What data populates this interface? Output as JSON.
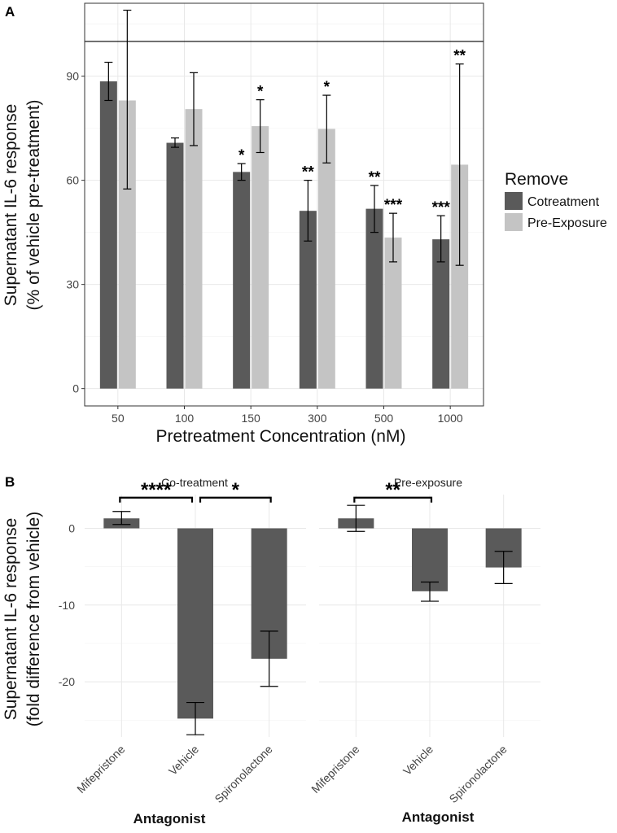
{
  "chart_data": [
    {
      "panel": "A",
      "type": "bar",
      "ylabel_line1": "Supernatant IL-6 response",
      "ylabel_line2": "(% of vehicle pre-treatment)",
      "xlabel": "Pretreatment Concentration (nM)",
      "ylim": [
        -5,
        111
      ],
      "yticks": [
        0,
        30,
        60,
        90
      ],
      "reference_line": 100,
      "categories": [
        "50",
        "100",
        "150",
        "300",
        "500",
        "1000"
      ],
      "legend_title": "Remove",
      "series": [
        {
          "name": "Cotreatment",
          "color": "#5a5a5a",
          "values": [
            88.5,
            70.8,
            62.4,
            51.2,
            51.8,
            43.0
          ],
          "err_low": [
            83.0,
            69.5,
            60.0,
            42.5,
            45.0,
            36.5
          ],
          "err_high": [
            94.0,
            72.2,
            64.8,
            60.0,
            58.5,
            49.8
          ],
          "stars": [
            "",
            "",
            "*",
            "**",
            "**",
            "***"
          ]
        },
        {
          "name": "Pre-Exposure",
          "color": "#c4c4c4",
          "values": [
            83.0,
            80.5,
            75.6,
            74.8,
            43.5,
            64.5
          ],
          "err_low": [
            57.5,
            70.0,
            68.0,
            65.0,
            36.5,
            35.5
          ],
          "err_high": [
            109.0,
            91.0,
            83.2,
            84.5,
            50.5,
            93.5
          ],
          "stars": [
            "",
            "",
            "*",
            "*",
            "***",
            "**"
          ]
        }
      ]
    },
    {
      "panel": "B",
      "type": "bar",
      "ylabel_line1": "Supernatant IL-6 response",
      "ylabel_line2": "(fold difference from vehicle)",
      "xlabel": "Antagonist",
      "ylim": [
        -27.2,
        4.4
      ],
      "yticks": [
        0,
        -10,
        -20
      ],
      "facets": [
        {
          "title": "Co-treatment",
          "categories": [
            "Mifepristone",
            "Vehicle",
            "Spironolactone"
          ],
          "values": [
            1.3,
            -24.8,
            -17.0
          ],
          "err_low": [
            0.5,
            -26.9,
            -20.6
          ],
          "err_high": [
            2.2,
            -22.7,
            -13.4
          ],
          "brackets": [
            {
              "from": 0,
              "to": 1,
              "label": "****"
            },
            {
              "from": 1,
              "to": 2,
              "label": "*"
            }
          ]
        },
        {
          "title": "Pre-exposure",
          "categories": [
            "Mifepristone",
            "Vehicle",
            "Spironolactone"
          ],
          "values": [
            1.3,
            -8.2,
            -5.1
          ],
          "err_low": [
            -0.4,
            -9.5,
            -7.2
          ],
          "err_high": [
            3.0,
            -7.0,
            -3.0
          ],
          "brackets": [
            {
              "from": 0,
              "to": 1,
              "label": "**"
            }
          ]
        }
      ]
    }
  ]
}
